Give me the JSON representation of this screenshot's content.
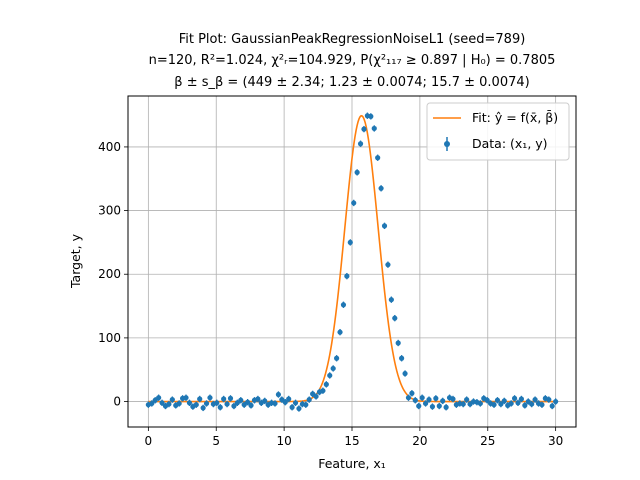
{
  "chart_data": {
    "type": "scatter",
    "title_lines": [
      "Fit Plot: GaussianPeakRegressionNoiseL1 (seed=789)",
      "n=120, R²=1.024, χ²ᵣ=104.929, P(χ²₁₁₇ ≥ 0.897 | H₀) = 0.7805",
      "β ± s_β = (449 ± 2.34; 1.23 ± 0.0074; 15.7 ± 0.0074)"
    ],
    "xlabel": "Feature, x₁",
    "ylabel": "Target, y",
    "xlim": [
      -1.5,
      31.5
    ],
    "ylim": [
      -40,
      480
    ],
    "xticks": [
      0,
      5,
      10,
      15,
      20,
      25,
      30
    ],
    "yticks": [
      0,
      100,
      200,
      300,
      400
    ],
    "grid": true,
    "legend_position": "top-right",
    "fit_params": {
      "amplitude": 449,
      "sigma": 1.23,
      "center": 15.7
    },
    "series": [
      {
        "name": "Fit: ŷ = f(x̄, β̄)",
        "kind": "line",
        "color": "#ff7f0e"
      },
      {
        "name": "Data: (x₁, y)",
        "kind": "errorbar-scatter",
        "color": "#1f77b4",
        "x": [
          0.0,
          0.252,
          0.504,
          0.756,
          1.008,
          1.261,
          1.513,
          1.765,
          2.017,
          2.269,
          2.521,
          2.773,
          3.025,
          3.277,
          3.529,
          3.782,
          4.034,
          4.286,
          4.538,
          4.79,
          5.042,
          5.294,
          5.546,
          5.798,
          6.05,
          6.303,
          6.555,
          6.807,
          7.059,
          7.311,
          7.563,
          7.815,
          8.067,
          8.319,
          8.571,
          8.824,
          9.076,
          9.328,
          9.58,
          9.832,
          10.084,
          10.336,
          10.588,
          10.84,
          11.092,
          11.345,
          11.597,
          11.849,
          12.101,
          12.353,
          12.605,
          12.857,
          13.109,
          13.361,
          13.613,
          13.866,
          14.118,
          14.37,
          14.622,
          14.874,
          15.126,
          15.378,
          15.63,
          15.882,
          16.134,
          16.387,
          16.639,
          16.891,
          17.143,
          17.395,
          17.647,
          17.899,
          18.151,
          18.403,
          18.655,
          18.908,
          19.16,
          19.412,
          19.664,
          19.916,
          20.168,
          20.42,
          20.672,
          20.924,
          21.176,
          21.429,
          21.681,
          21.933,
          22.185,
          22.437,
          22.689,
          22.941,
          23.193,
          23.445,
          23.697,
          23.95,
          24.202,
          24.454,
          24.706,
          24.958,
          25.21,
          25.462,
          25.714,
          25.966,
          26.218,
          26.471,
          26.723,
          26.975,
          27.227,
          27.479,
          27.731,
          27.983,
          28.235,
          28.487,
          28.739,
          28.992,
          29.244,
          29.496,
          29.748,
          30.0
        ],
        "y": [
          -5,
          -3,
          2,
          6,
          -2,
          -7,
          -4,
          3,
          -6,
          -3,
          5,
          6,
          -2,
          -8,
          -5,
          4,
          -10,
          -3,
          6,
          -4,
          -2,
          -9,
          4,
          -4,
          5,
          -7,
          -2,
          2,
          -5,
          -1,
          -6,
          2,
          4,
          -2,
          1,
          -5,
          -2,
          -3,
          11,
          3,
          -1,
          4,
          -9,
          -2,
          -11,
          -4,
          -5,
          3,
          12,
          8,
          15,
          17,
          27,
          41,
          52,
          68,
          109,
          152,
          197,
          250,
          312,
          360,
          405,
          428,
          449,
          448,
          429,
          383,
          335,
          276,
          215,
          160,
          131,
          92,
          68,
          44,
          6,
          13,
          2,
          -7,
          6,
          -3,
          3,
          -8,
          5,
          -7,
          1,
          -9,
          6,
          4,
          -5,
          -3,
          -4,
          3,
          -4,
          0,
          -1,
          -3,
          5,
          2,
          -3,
          -5,
          2,
          -4,
          1,
          -6,
          -3,
          5,
          -2,
          4,
          -6,
          0,
          -4,
          3,
          -3,
          -5,
          5,
          3,
          -7,
          0
        ],
        "yerr": 5
      }
    ]
  }
}
